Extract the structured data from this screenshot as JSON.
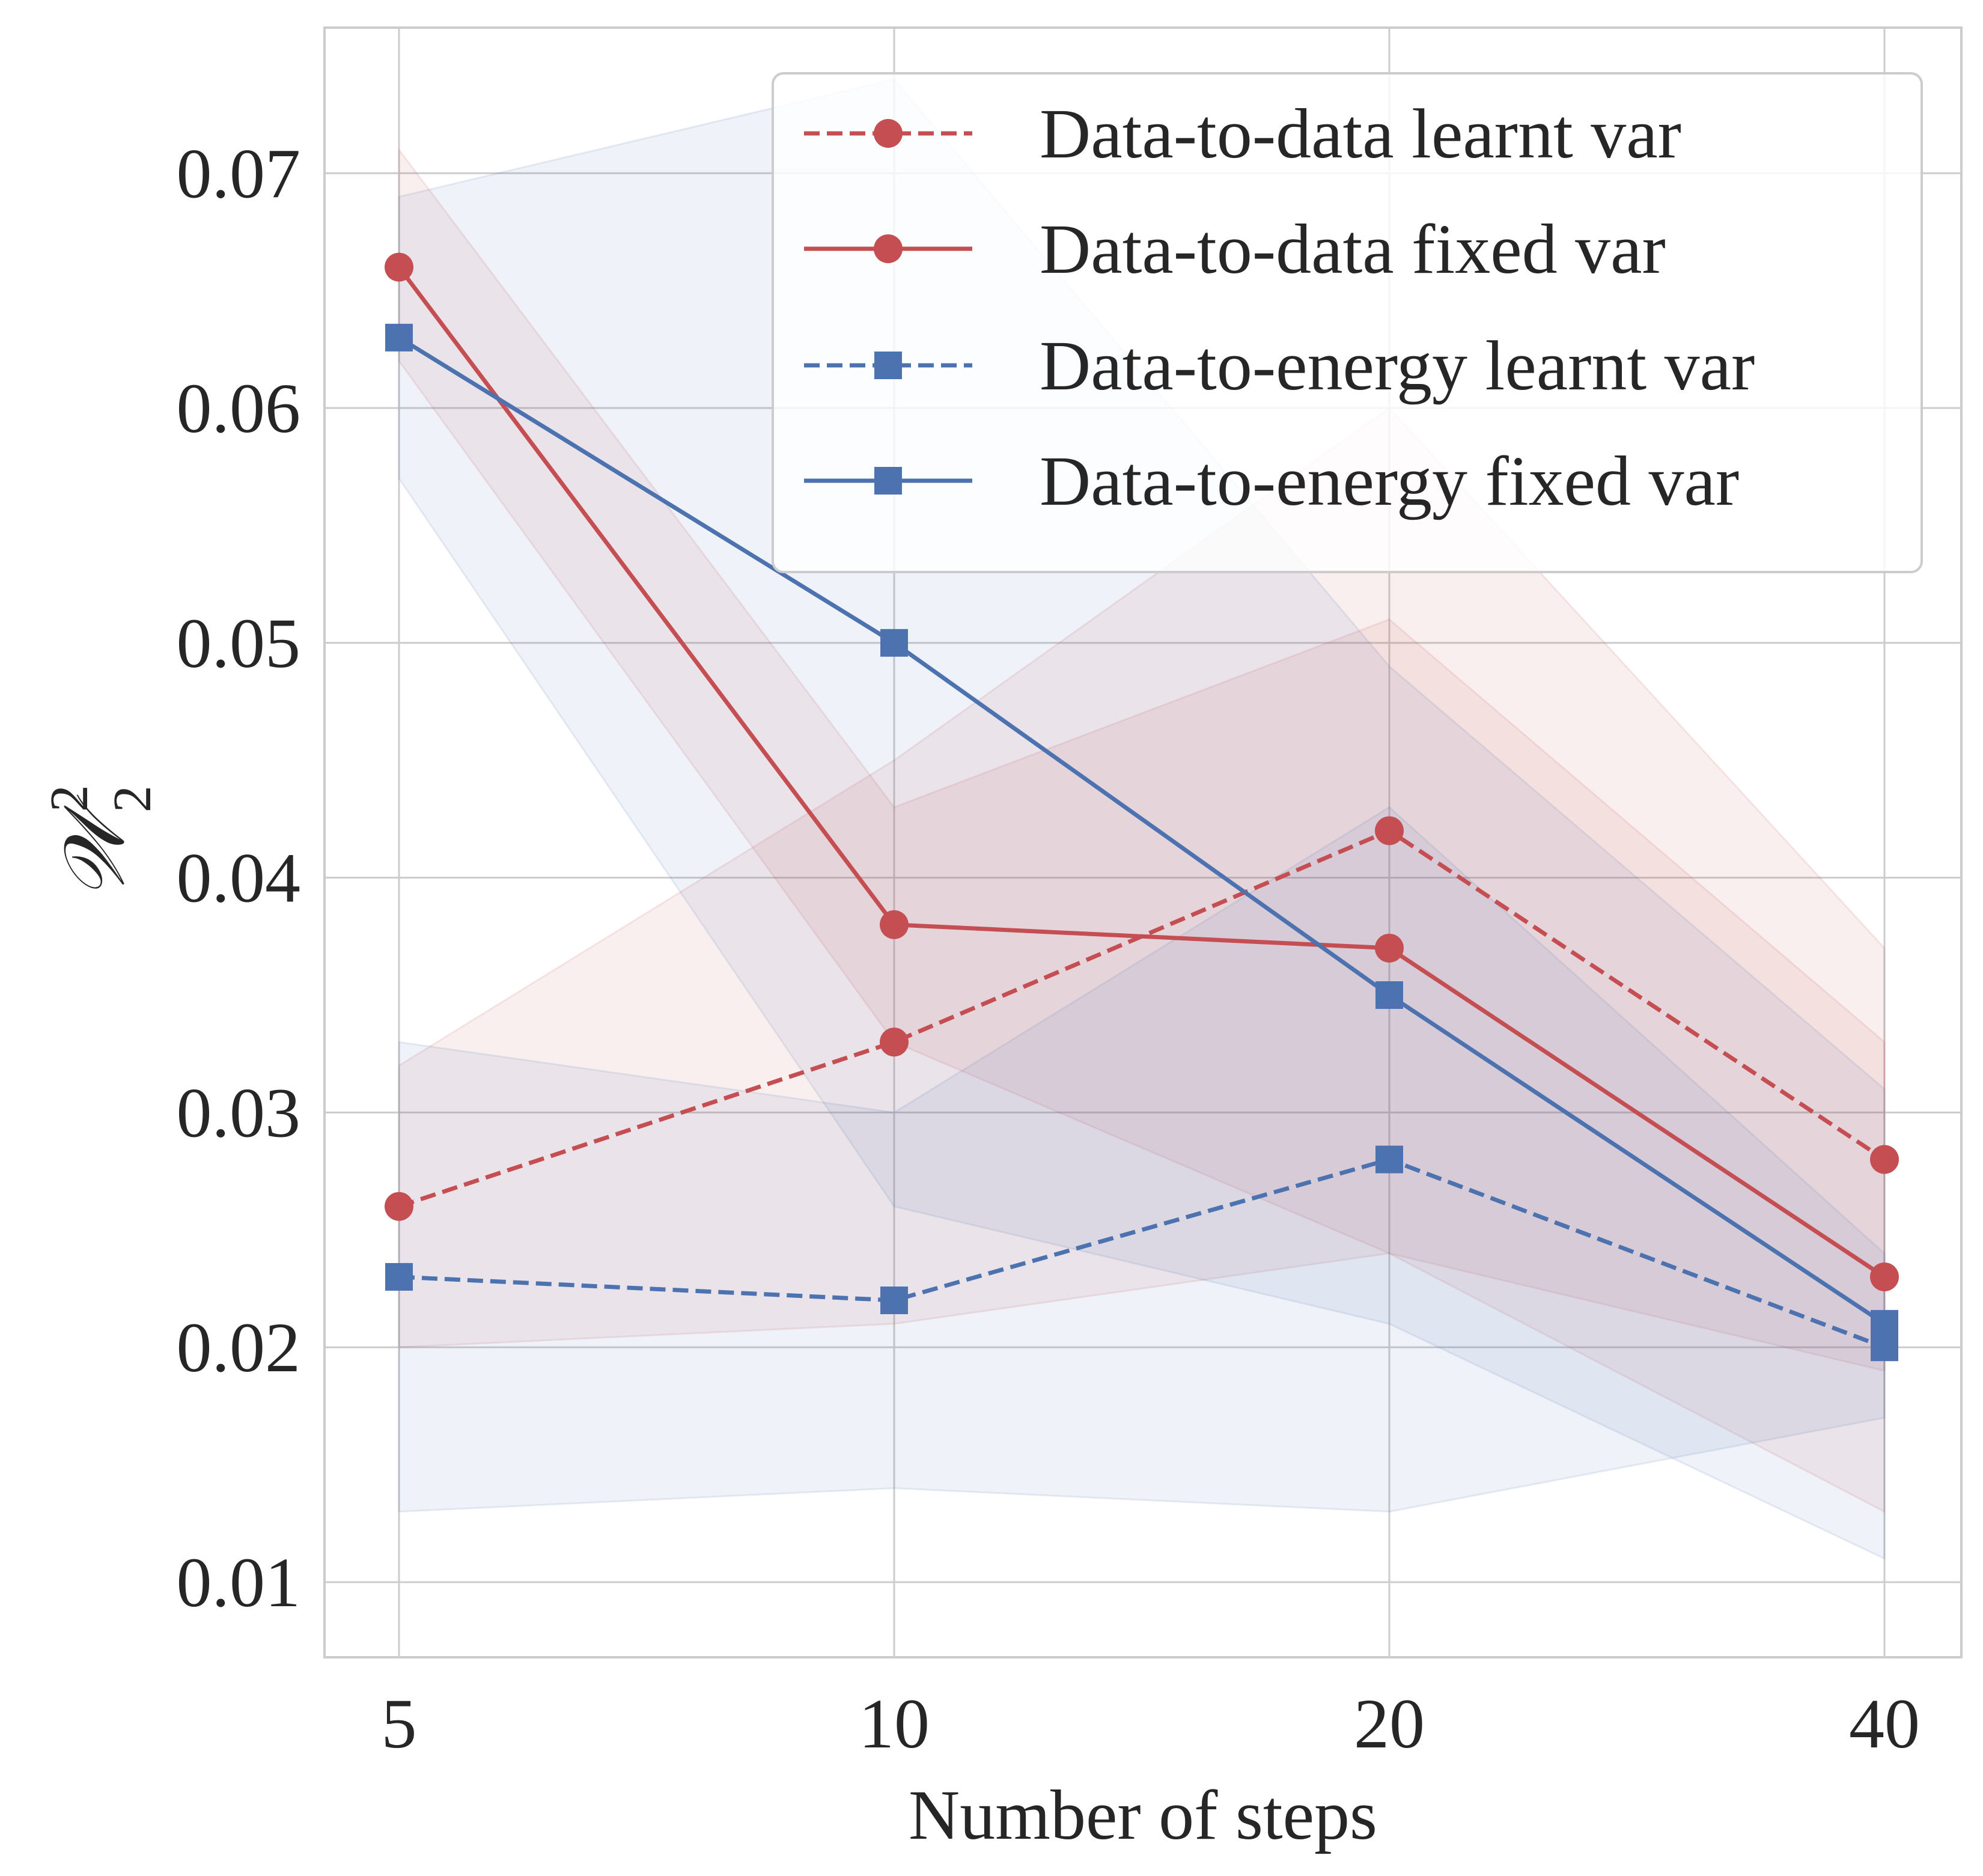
{
  "chart_data": {
    "type": "line",
    "xlabel": "Number of steps",
    "ylabel": "𝒲",
    "ylabel_sup": "2",
    "ylabel_sub": "2",
    "x_ticks": [
      "5",
      "10",
      "20",
      "40"
    ],
    "y_ticks": [
      "0.01",
      "0.02",
      "0.03",
      "0.04",
      "0.05",
      "0.06",
      "0.07"
    ],
    "ylim": [
      0.0068,
      0.0762
    ],
    "grid": true,
    "legend_position": "top-right",
    "colors": {
      "red": "#c44e52",
      "blue": "#4c72b0"
    },
    "series": [
      {
        "name": "Data-to-data learnt var",
        "color": "#c44e52",
        "line_style": "dashed",
        "marker": "circle",
        "values": [
          0.026,
          0.033,
          0.042,
          0.028
        ],
        "band_lower": [
          0.02,
          0.021,
          0.024,
          0.019
        ],
        "band_upper": [
          0.032,
          0.045,
          0.06,
          0.037
        ]
      },
      {
        "name": "Data-to-data fixed var",
        "color": "#c44e52",
        "line_style": "solid",
        "marker": "circle",
        "values": [
          0.066,
          0.038,
          0.037,
          0.023
        ],
        "band_lower": [
          0.062,
          0.033,
          0.024,
          0.013
        ],
        "band_upper": [
          0.071,
          0.043,
          0.051,
          0.033
        ]
      },
      {
        "name": "Data-to-energy learnt var",
        "color": "#4c72b0",
        "line_style": "dashed",
        "marker": "square",
        "values": [
          0.023,
          0.022,
          0.028,
          0.02
        ],
        "band_lower": [
          0.013,
          0.014,
          0.013,
          0.017
        ],
        "band_upper": [
          0.033,
          0.03,
          0.043,
          0.024
        ]
      },
      {
        "name": "Data-to-energy fixed var",
        "color": "#4c72b0",
        "line_style": "solid",
        "marker": "square",
        "values": [
          0.063,
          0.05,
          0.035,
          0.021
        ],
        "band_lower": [
          0.057,
          0.026,
          0.021,
          0.011
        ],
        "band_upper": [
          0.069,
          0.074,
          0.049,
          0.031
        ]
      }
    ]
  }
}
